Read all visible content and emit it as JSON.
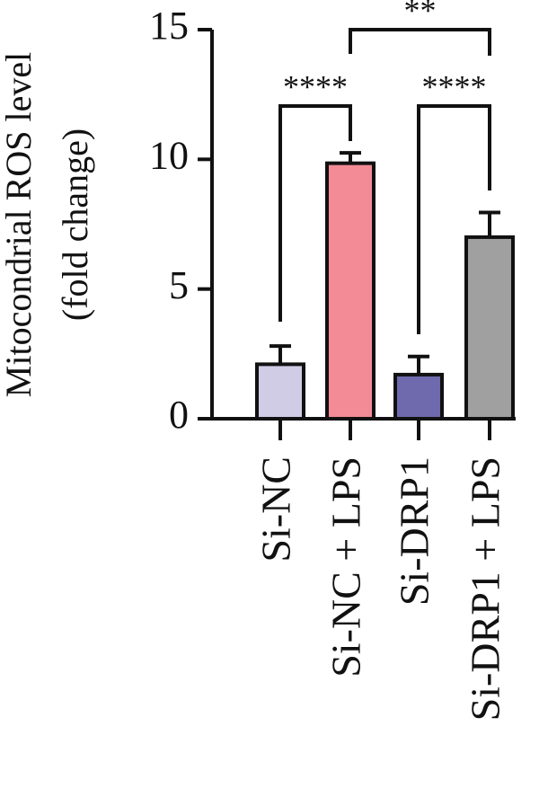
{
  "chart_data": {
    "type": "bar",
    "y_label_lines": [
      "Mitocondrial ROS level",
      "(fold change)"
    ],
    "categories": [
      "Si-NC",
      "Si-NC + LPS",
      "Si-DRP1",
      "Si-DRP1 + LPS"
    ],
    "values": [
      2.1,
      9.85,
      1.7,
      7.0
    ],
    "errors": [
      0.7,
      0.4,
      0.7,
      0.95
    ],
    "colors": [
      "#d0cce6",
      "#f28b95",
      "#6f6aad",
      "#a0a0a0"
    ],
    "ylim": [
      0,
      15
    ],
    "yticks": [
      0,
      5,
      10,
      15
    ],
    "annotations": [
      "****",
      "****",
      "**"
    ]
  }
}
